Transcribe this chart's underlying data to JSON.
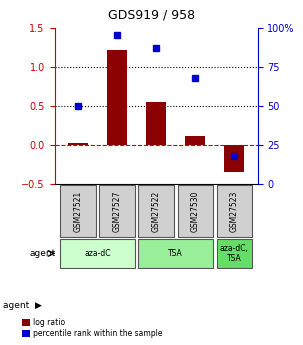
{
  "title": "GDS919 / 958",
  "samples": [
    "GSM27521",
    "GSM27527",
    "GSM27522",
    "GSM27530",
    "GSM27523"
  ],
  "log_ratio": [
    0.02,
    1.22,
    0.55,
    0.12,
    -0.35
  ],
  "percentile_rank": [
    0.5,
    0.95,
    0.87,
    0.68,
    0.18
  ],
  "agent_groups": [
    {
      "label": "aza-dC",
      "samples": [
        "GSM27521",
        "GSM27527"
      ],
      "color": "#ccffcc"
    },
    {
      "label": "TSA",
      "samples": [
        "GSM27522",
        "GSM27530"
      ],
      "color": "#99ee99"
    },
    {
      "label": "aza-dC,\nTSA",
      "samples": [
        "GSM27523"
      ],
      "color": "#66dd66"
    }
  ],
  "ylim_left": [
    -0.5,
    1.5
  ],
  "ylim_right": [
    0,
    100
  ],
  "yticks_left": [
    -0.5,
    0.0,
    0.5,
    1.0,
    1.5
  ],
  "yticks_right": [
    0,
    25,
    50,
    75,
    100
  ],
  "bar_color": "#8B0000",
  "dot_color": "#0000CD",
  "bar_width": 0.5,
  "hline_dashed_red": 0.0,
  "hlines_dotted_black": [
    0.5,
    1.0
  ],
  "legend_labels": [
    "log ratio",
    "percentile rank within the sample"
  ],
  "legend_colors": [
    "#8B0000",
    "#0000CD"
  ],
  "background_color": "#f0f0f0",
  "sample_box_color": "#d0d0d0"
}
